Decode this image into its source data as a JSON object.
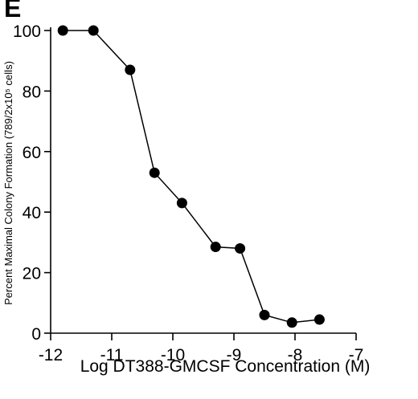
{
  "panel_label": "E",
  "chart_data": {
    "type": "line",
    "xlabel": "Log DT388-GMCSF Concentration (M)",
    "ylabel": "Percent Maximal Colony Formation (789/2x10⁵ cells)",
    "xlim": [
      -12,
      -7
    ],
    "ylim": [
      0,
      100
    ],
    "x_ticks": [
      -12,
      -11,
      -10,
      -9,
      -8,
      -7
    ],
    "x_tick_labels": [
      "-12",
      "-11",
      "-10",
      "-9",
      "-8",
      "-7"
    ],
    "y_ticks": [
      0,
      20,
      40,
      60,
      80,
      100
    ],
    "y_tick_labels": [
      "0",
      "20",
      "40",
      "60",
      "80",
      "100"
    ],
    "grid": false,
    "series": [
      {
        "marker": "filled-circle",
        "color": "#000000",
        "x": [
          -11.8,
          -11.3,
          -10.7,
          -10.3,
          -9.85,
          -9.3,
          -8.9,
          -8.5,
          -8.05,
          -7.6
        ],
        "y": [
          100,
          100,
          87,
          53,
          43,
          28.5,
          28,
          6,
          3.5,
          4.5
        ]
      }
    ]
  }
}
